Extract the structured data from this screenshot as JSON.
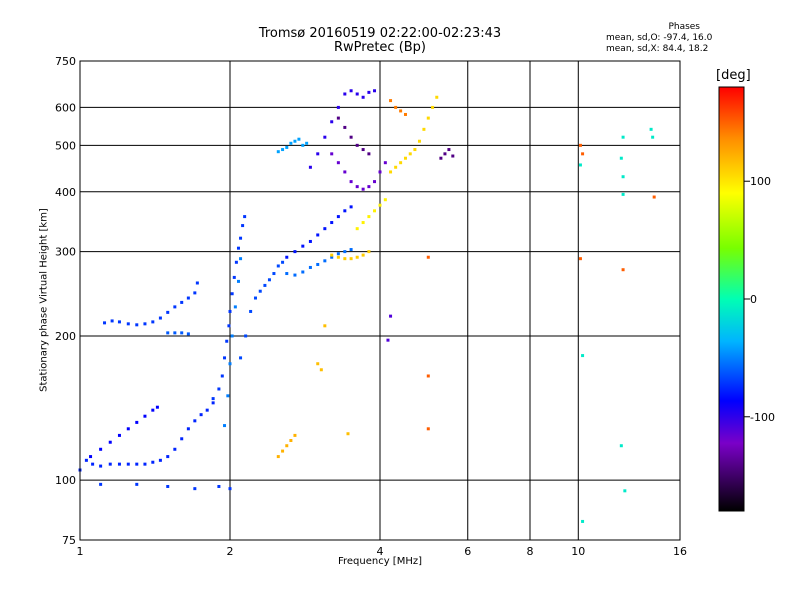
{
  "chart_data": {
    "type": "scatter",
    "title": "Tromsø 20160519 02:22:00-02:23:43",
    "subtitle": "RwPretec (Bp)",
    "xlabel": "Frequency [MHz]",
    "ylabel": "Stationary phase Virtual Height [km]",
    "x_scale": "log",
    "y_scale": "log",
    "xlim": [
      1,
      16
    ],
    "ylim": [
      75,
      750
    ],
    "x_ticks": [
      1,
      2,
      4,
      6,
      8,
      10,
      16
    ],
    "y_ticks": [
      75,
      100,
      200,
      300,
      400,
      500,
      600,
      750
    ],
    "grid": true,
    "phase_stats": {
      "header": "Phases",
      "o_line": "mean, sd,O: -97.4, 16.0",
      "x_line": "mean, sd,X:  84.4, 18.2"
    },
    "colorbar": {
      "label": "[deg]",
      "ticks": [
        100,
        0,
        -100
      ],
      "range": [
        -180,
        180
      ]
    },
    "series": [
      {
        "points": [
          [
            1.0,
            105
          ],
          [
            1.03,
            110
          ],
          [
            1.06,
            108
          ],
          [
            1.1,
            107
          ],
          [
            1.15,
            108
          ],
          [
            1.2,
            108
          ],
          [
            1.25,
            108
          ],
          [
            1.3,
            108
          ],
          [
            1.35,
            108
          ],
          [
            1.4,
            109
          ],
          [
            1.45,
            110
          ],
          [
            1.5,
            112
          ],
          [
            1.55,
            116
          ],
          [
            1.6,
            122
          ],
          [
            1.65,
            128
          ],
          [
            1.7,
            133
          ],
          [
            1.75,
            137
          ],
          [
            1.8,
            140
          ],
          [
            1.85,
            145
          ]
        ],
        "phase": -110
      },
      {
        "points": [
          [
            1.05,
            112
          ],
          [
            1.1,
            116
          ],
          [
            1.15,
            120
          ],
          [
            1.2,
            124
          ],
          [
            1.25,
            128
          ],
          [
            1.3,
            132
          ],
          [
            1.35,
            136
          ],
          [
            1.4,
            140
          ],
          [
            1.43,
            142
          ]
        ],
        "phase": -120
      },
      {
        "points": [
          [
            1.12,
            213
          ],
          [
            1.16,
            215
          ],
          [
            1.2,
            214
          ],
          [
            1.25,
            212
          ],
          [
            1.3,
            211
          ],
          [
            1.35,
            212
          ],
          [
            1.4,
            214
          ],
          [
            1.45,
            218
          ],
          [
            1.5,
            224
          ],
          [
            1.55,
            230
          ],
          [
            1.6,
            235
          ],
          [
            1.65,
            240
          ],
          [
            1.7,
            246
          ],
          [
            1.72,
            258
          ]
        ],
        "phase": -105
      },
      {
        "points": [
          [
            1.5,
            203
          ],
          [
            1.55,
            203
          ],
          [
            1.6,
            203
          ],
          [
            1.65,
            202
          ]
        ],
        "phase": -95
      },
      {
        "points": [
          [
            1.85,
            148
          ],
          [
            1.9,
            155
          ],
          [
            1.93,
            165
          ],
          [
            1.95,
            180
          ],
          [
            1.97,
            195
          ],
          [
            1.99,
            210
          ],
          [
            2.0,
            225
          ],
          [
            2.02,
            245
          ],
          [
            2.04,
            265
          ],
          [
            2.06,
            285
          ],
          [
            2.08,
            305
          ],
          [
            2.1,
            320
          ],
          [
            2.12,
            340
          ],
          [
            2.14,
            355
          ]
        ],
        "phase": -105
      },
      {
        "points": [
          [
            1.95,
            130
          ],
          [
            1.98,
            150
          ],
          [
            2.0,
            175
          ],
          [
            2.02,
            200
          ],
          [
            2.05,
            230
          ],
          [
            2.08,
            260
          ],
          [
            2.1,
            290
          ]
        ],
        "phase": -85
      },
      {
        "points": [
          [
            2.1,
            180
          ],
          [
            2.15,
            200
          ],
          [
            2.2,
            225
          ],
          [
            2.25,
            240
          ],
          [
            2.3,
            248
          ],
          [
            2.35,
            255
          ],
          [
            2.4,
            262
          ],
          [
            2.45,
            270
          ],
          [
            2.5,
            280
          ],
          [
            2.55,
            285
          ]
        ],
        "phase": -100
      },
      {
        "points": [
          [
            2.5,
            485
          ],
          [
            2.55,
            490
          ],
          [
            2.6,
            495
          ],
          [
            2.65,
            505
          ],
          [
            2.7,
            510
          ],
          [
            2.75,
            515
          ],
          [
            2.8,
            500
          ],
          [
            2.85,
            505
          ]
        ],
        "phase": -75
      },
      {
        "points": [
          [
            2.6,
            270
          ],
          [
            2.7,
            268
          ],
          [
            2.8,
            272
          ],
          [
            2.9,
            278
          ],
          [
            3.0,
            282
          ],
          [
            3.1,
            287
          ],
          [
            3.2,
            292
          ],
          [
            3.3,
            297
          ],
          [
            3.4,
            300
          ],
          [
            3.5,
            303
          ]
        ],
        "phase": -90
      },
      {
        "points": [
          [
            2.6,
            292
          ],
          [
            2.7,
            300
          ],
          [
            2.8,
            308
          ],
          [
            2.9,
            315
          ],
          [
            3.0,
            325
          ],
          [
            3.1,
            335
          ],
          [
            3.2,
            345
          ],
          [
            3.3,
            355
          ],
          [
            3.4,
            365
          ],
          [
            3.5,
            372
          ]
        ],
        "phase": -115
      },
      {
        "points": [
          [
            2.9,
            450
          ],
          [
            3.0,
            480
          ],
          [
            3.1,
            520
          ],
          [
            3.2,
            560
          ],
          [
            3.3,
            600
          ],
          [
            3.4,
            640
          ],
          [
            3.5,
            650
          ],
          [
            3.6,
            640
          ],
          [
            3.7,
            630
          ],
          [
            3.8,
            645
          ],
          [
            3.9,
            650
          ]
        ],
        "phase": -130
      },
      {
        "points": [
          [
            3.2,
            480
          ],
          [
            3.3,
            460
          ],
          [
            3.4,
            440
          ],
          [
            3.5,
            420
          ],
          [
            3.6,
            410
          ],
          [
            3.7,
            405
          ],
          [
            3.8,
            410
          ],
          [
            3.9,
            420
          ],
          [
            4.0,
            440
          ],
          [
            4.1,
            460
          ]
        ],
        "phase": -145
      },
      {
        "points": [
          [
            3.3,
            570
          ],
          [
            3.4,
            545
          ],
          [
            3.5,
            520
          ],
          [
            3.6,
            500
          ],
          [
            3.7,
            490
          ],
          [
            3.8,
            480
          ]
        ],
        "phase": -160
      },
      {
        "points": [
          [
            3.2,
            295
          ],
          [
            3.3,
            292
          ],
          [
            3.4,
            290
          ],
          [
            3.5,
            290
          ],
          [
            3.6,
            292
          ],
          [
            3.7,
            295
          ],
          [
            3.8,
            300
          ]
        ],
        "phase": 110
      },
      {
        "points": [
          [
            3.6,
            335
          ],
          [
            3.7,
            345
          ],
          [
            3.8,
            355
          ],
          [
            3.9,
            365
          ],
          [
            4.0,
            375
          ],
          [
            4.1,
            385
          ]
        ],
        "phase": 95
      },
      {
        "points": [
          [
            4.2,
            440
          ],
          [
            4.3,
            450
          ],
          [
            4.4,
            460
          ],
          [
            4.5,
            470
          ],
          [
            4.6,
            480
          ],
          [
            4.7,
            490
          ],
          [
            4.8,
            510
          ],
          [
            4.9,
            540
          ],
          [
            5.0,
            570
          ],
          [
            5.1,
            600
          ],
          [
            5.2,
            630
          ]
        ],
        "phase": 105
      },
      {
        "points": [
          [
            4.2,
            620
          ],
          [
            4.3,
            600
          ],
          [
            4.4,
            590
          ],
          [
            4.5,
            580
          ]
        ],
        "phase": 140
      },
      {
        "points": [
          [
            2.5,
            112
          ],
          [
            2.55,
            115
          ],
          [
            2.6,
            118
          ],
          [
            2.65,
            121
          ],
          [
            2.7,
            124
          ]
        ],
        "phase": 120
      },
      {
        "points": [
          [
            3.1,
            210
          ],
          [
            3.0,
            175
          ],
          [
            3.05,
            170
          ],
          [
            3.45,
            125
          ]
        ],
        "phase": 115
      },
      {
        "points": [
          [
            5.0,
            292
          ],
          [
            5.0,
            165
          ],
          [
            5.0,
            128
          ]
        ],
        "phase": 150
      },
      {
        "points": [
          [
            5.3,
            470
          ],
          [
            5.4,
            480
          ],
          [
            5.5,
            490
          ],
          [
            5.6,
            475
          ]
        ],
        "phase": -160
      },
      {
        "points": [
          [
            4.2,
            220
          ],
          [
            4.15,
            196
          ]
        ],
        "phase": -140
      },
      {
        "points": [
          [
            10.1,
            500
          ],
          [
            10.2,
            480
          ],
          [
            10.1,
            290
          ],
          [
            12.3,
            275
          ],
          [
            14.2,
            390
          ]
        ],
        "phase": 150
      },
      {
        "points": [
          [
            10.1,
            455
          ],
          [
            10.2,
            82
          ],
          [
            10.2,
            182
          ],
          [
            12.2,
            470
          ],
          [
            12.3,
            430
          ],
          [
            12.3,
            395
          ],
          [
            12.2,
            118
          ],
          [
            12.4,
            95
          ],
          [
            12.3,
            520
          ],
          [
            14.0,
            540
          ],
          [
            14.1,
            520
          ]
        ],
        "phase": -20
      },
      {
        "points": [
          [
            1.1,
            98
          ],
          [
            1.3,
            98
          ],
          [
            1.5,
            97
          ],
          [
            1.7,
            96
          ],
          [
            1.9,
            97
          ],
          [
            2.0,
            96
          ]
        ],
        "phase": -105
      }
    ]
  }
}
